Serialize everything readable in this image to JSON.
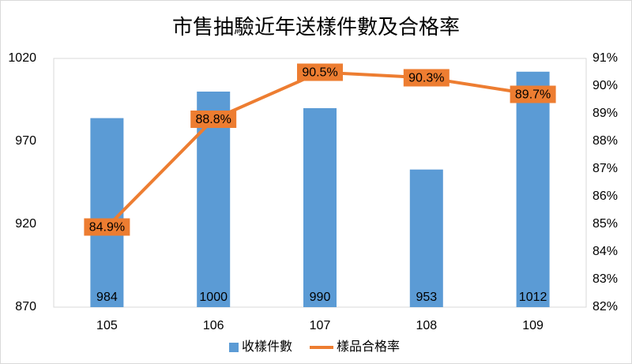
{
  "chart_data": {
    "type": "combo",
    "title": "市售抽驗近年送樣件數及合格率",
    "categories": [
      "105",
      "106",
      "107",
      "108",
      "109"
    ],
    "series": [
      {
        "name": "收樣件數",
        "type": "bar",
        "color": "#5b9bd5",
        "values": [
          984,
          1000,
          990,
          953,
          1012
        ]
      },
      {
        "name": "樣品合格率",
        "type": "line",
        "axis": "y2",
        "color": "#ed7d31",
        "values": [
          84.9,
          88.8,
          90.5,
          90.3,
          89.7
        ],
        "value_labels": [
          "84.9%",
          "88.8%",
          "90.5%",
          "90.3%",
          "89.7%"
        ]
      }
    ],
    "ylim": [
      870,
      1020
    ],
    "yticks": [
      870,
      920,
      970,
      1020
    ],
    "y2lim": [
      82,
      91
    ],
    "y2ticks": [
      {
        "value": 82,
        "label": "82%"
      },
      {
        "value": 83,
        "label": "83%"
      },
      {
        "value": 84,
        "label": "84%"
      },
      {
        "value": 85,
        "label": "85%"
      },
      {
        "value": 86,
        "label": "86%"
      },
      {
        "value": 87,
        "label": "87%"
      },
      {
        "value": 88,
        "label": "88%"
      },
      {
        "value": 89,
        "label": "89%"
      },
      {
        "value": 90,
        "label": "90%"
      },
      {
        "value": 91,
        "label": "91%"
      }
    ],
    "grid": false,
    "legend": "bottom"
  }
}
